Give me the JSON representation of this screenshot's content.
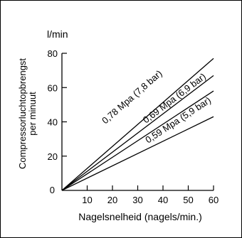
{
  "chart_data": {
    "type": "line",
    "title": "",
    "unit_label": "l/min",
    "xlabel": "Nagelsnelheid (nagels/min.)",
    "ylabel_lines": [
      "Compressorluchtopbrengst",
      "per minuut"
    ],
    "x_ticks": [
      "10",
      "20",
      "30",
      "40",
      "50",
      "60"
    ],
    "y_ticks": [
      "0",
      "20",
      "40",
      "60",
      "80"
    ],
    "origin_label": "0",
    "xlim": [
      0,
      60
    ],
    "ylim": [
      0,
      80
    ],
    "grid": false,
    "line_color": "#000000",
    "series": [
      {
        "name": "0,78 Mpa (7,8 bar)",
        "x": [
          0,
          60
        ],
        "y": [
          0,
          77
        ]
      },
      {
        "name": "0,69 Mpa (6,9 bar)",
        "x": [
          0,
          60
        ],
        "y": [
          0,
          67
        ]
      },
      {
        "name": "0,59 Mpa (5,9 bar)",
        "x": [
          0,
          60
        ],
        "y": [
          0,
          58
        ]
      },
      {
        "name": "",
        "x": [
          0,
          60
        ],
        "y": [
          0,
          43
        ]
      }
    ]
  }
}
